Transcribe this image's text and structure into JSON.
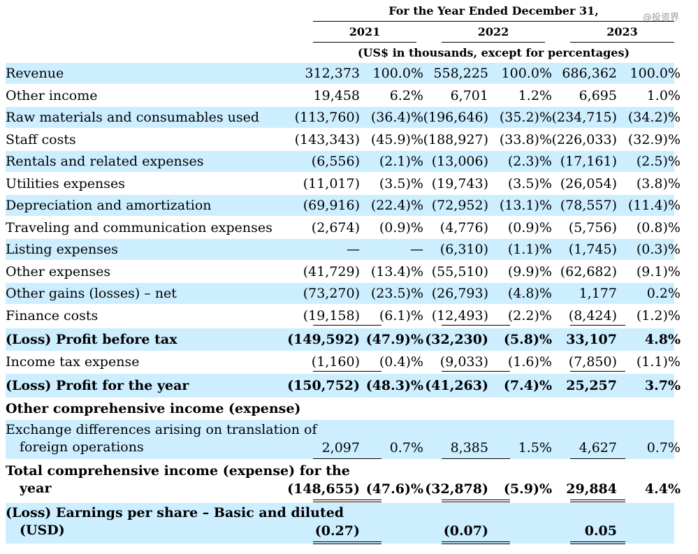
{
  "header": {
    "period": "For the Year Ended December 31,",
    "years": [
      "2021",
      "2022",
      "2023"
    ],
    "units": "(US$ in thousands, except for percentages)",
    "watermark": "@投资界"
  },
  "rows": [
    {
      "label": "Revenue",
      "v": [
        "312,373",
        "100.0%",
        "558,225",
        "100.0%",
        "686,362",
        "100.0%"
      ]
    },
    {
      "label": "Other income",
      "v": [
        "19,458",
        "6.2%",
        "6,701",
        "1.2%",
        "6,695",
        "1.0%"
      ]
    },
    {
      "label": "Raw materials and consumables used",
      "v": [
        "(113,760)",
        "(36.4)%",
        "(196,646)",
        "(35.2)%",
        "(234,715)",
        "(34.2)%"
      ]
    },
    {
      "label": "Staff costs",
      "v": [
        "(143,343)",
        "(45.9)%",
        "(188,927)",
        "(33.8)%",
        "(226,033)",
        "(32.9)%"
      ]
    },
    {
      "label": "Rentals and related expenses",
      "v": [
        "(6,556)",
        "(2.1)%",
        "(13,006)",
        "(2.3)%",
        "(17,161)",
        "(2.5)%"
      ]
    },
    {
      "label": "Utilities expenses",
      "v": [
        "(11,017)",
        "(3.5)%",
        "(19,743)",
        "(3.5)%",
        "(26,054)",
        "(3.8)%"
      ]
    },
    {
      "label": "Depreciation and amortization",
      "v": [
        "(69,916)",
        "(22.4)%",
        "(72,952)",
        "(13.1)%",
        "(78,557)",
        "(11.4)%"
      ]
    },
    {
      "label": "Traveling and communication expenses",
      "v": [
        "(2,674)",
        "(0.9)%",
        "(4,776)",
        "(0.9)%",
        "(5,756)",
        "(0.8)%"
      ]
    },
    {
      "label": "Listing expenses",
      "v": [
        "—",
        "—",
        "(6,310)",
        "(1.1)%",
        "(1,745)",
        "(0.3)%"
      ]
    },
    {
      "label": "Other expenses",
      "v": [
        "(41,729)",
        "(13.4)%",
        "(55,510)",
        "(9.9)%",
        "(62,682)",
        "(9.1)%"
      ]
    },
    {
      "label": "Other gains (losses) – net",
      "v": [
        "(73,270)",
        "(23.5)%",
        "(26,793)",
        "(4.8)%",
        "1,177",
        "0.2%"
      ]
    },
    {
      "label": "Finance costs",
      "v": [
        "(19,158)",
        "(6.1)%",
        "(12,493)",
        "(2.2)%",
        "(8,424)",
        "(1.2)%"
      ]
    },
    {
      "label": "(Loss) Profit before tax",
      "v": [
        "(149,592)",
        "(47.9)%",
        "(32,230)",
        "(5.8)%",
        "33,107",
        "4.8%"
      ]
    },
    {
      "label": "Income tax expense",
      "v": [
        "(1,160)",
        "(0.4)%",
        "(9,033)",
        "(1.6)%",
        "(7,850)",
        "(1.1)%"
      ]
    },
    {
      "label": "(Loss) Profit for the year",
      "v": [
        "(150,752)",
        "(48.3)%",
        "(41,263)",
        "(7.4)%",
        "25,257",
        "3.7%"
      ]
    },
    {
      "label": "Other comprehensive income (expense)",
      "v": []
    },
    {
      "label": "Exchange differences arising on translation of",
      "label2": "foreign operations",
      "v": [
        "2,097",
        "0.7%",
        "8,385",
        "1.5%",
        "4,627",
        "0.7%"
      ]
    },
    {
      "label": "Total comprehensive income (expense) for the",
      "label2": "year",
      "v": [
        "(148,655)",
        "(47.6)%",
        "(32,878)",
        "(5.9)%",
        "29,884",
        "4.4%"
      ]
    },
    {
      "label": "(Loss) Earnings per share – Basic and diluted",
      "label2": "(USD)",
      "v": [
        "(0.27)",
        "",
        "(0.07)",
        "",
        "0.05",
        ""
      ]
    }
  ]
}
